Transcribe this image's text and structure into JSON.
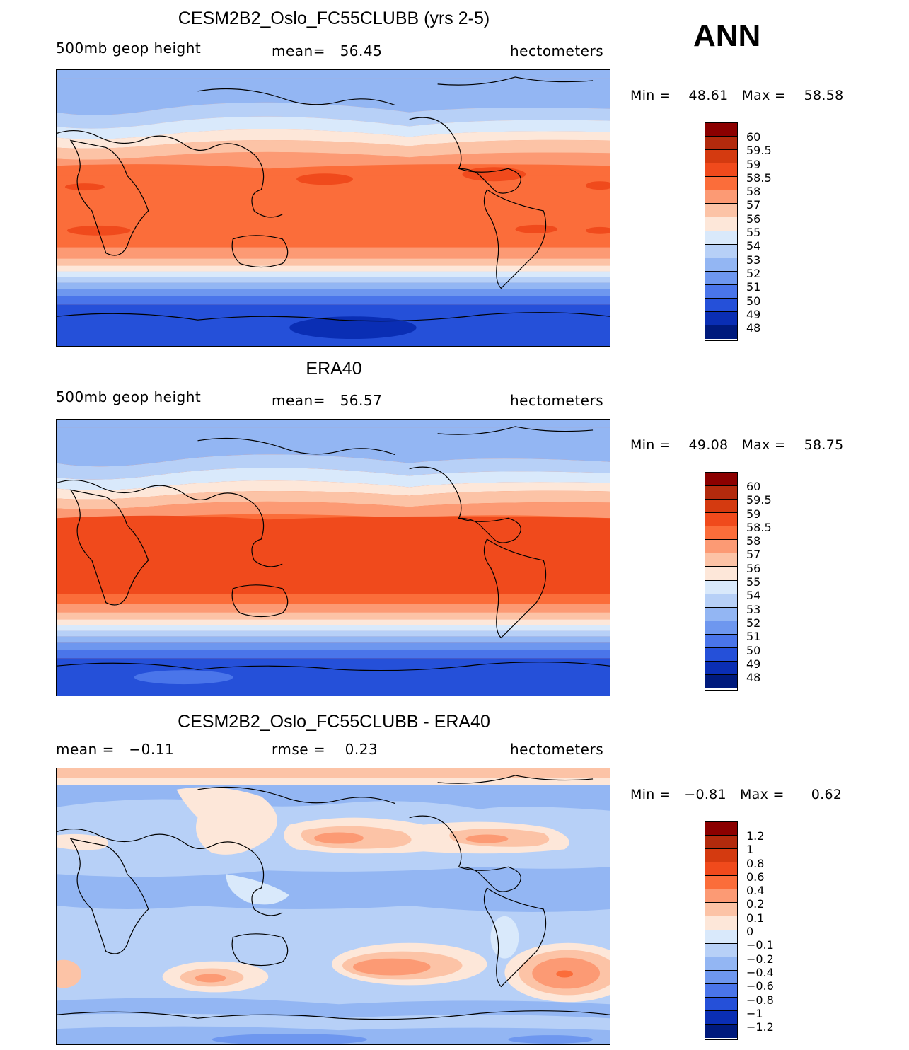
{
  "season": "ANN",
  "panels": [
    {
      "title": "CESM2B2_Oslo_FC55CLUBB (yrs 2-5)",
      "left": "500mb  geop  height",
      "center_label": "mean=",
      "center_value": "56.45",
      "right": "hectometers",
      "min_label": "Min  =",
      "min_value": "48.61",
      "max_label": "Max  =",
      "max_value": "58.58"
    },
    {
      "title": "ERA40",
      "left": "500mb  geop  height",
      "center_label": "mean=",
      "center_value": "56.57",
      "right": "hectometers",
      "min_label": "Min  =",
      "min_value": "49.08",
      "max_label": "Max  =",
      "max_value": "58.75"
    },
    {
      "title": "CESM2B2_Oslo_FC55CLUBB - ERA40",
      "left_label": "mean  =",
      "left_value": "−0.11",
      "center_label": "rmse  =",
      "center_value": "0.23",
      "right": "hectometers",
      "min_label": "Min  =",
      "min_value": "−0.81",
      "max_label": "Max  =",
      "max_value": "0.62"
    }
  ],
  "chart_data": [
    {
      "type": "heatmap",
      "title": "CESM2B2_Oslo_FC55CLUBB (yrs 2-5)",
      "variable": "500mb geop height",
      "units": "hectometers",
      "mean": 56.45,
      "min": 48.61,
      "max": 58.58,
      "colorbar_levels": [
        "60",
        "59.5",
        "59",
        "58.5",
        "58",
        "57",
        "56",
        "55",
        "54",
        "53",
        "52",
        "51",
        "50",
        "49",
        "48"
      ],
      "colorbar_colors": [
        "#8b0000",
        "#b22a0d",
        "#d43a10",
        "#f04a1c",
        "#fb6d3a",
        "#fc9a74",
        "#fcc3a6",
        "#fde7d9",
        "#d9e9fb",
        "#b7d0f7",
        "#93b6f3",
        "#6e97ef",
        "#4a75ea",
        "#2550d9",
        "#0a2eb4",
        "#001a7c"
      ]
    },
    {
      "type": "heatmap",
      "title": "ERA40",
      "variable": "500mb geop height",
      "units": "hectometers",
      "mean": 56.57,
      "min": 49.08,
      "max": 58.75,
      "colorbar_levels": [
        "60",
        "59.5",
        "59",
        "58.5",
        "58",
        "57",
        "56",
        "55",
        "54",
        "53",
        "52",
        "51",
        "50",
        "49",
        "48"
      ],
      "colorbar_colors": [
        "#8b0000",
        "#b22a0d",
        "#d43a10",
        "#f04a1c",
        "#fb6d3a",
        "#fc9a74",
        "#fcc3a6",
        "#fde7d9",
        "#d9e9fb",
        "#b7d0f7",
        "#93b6f3",
        "#6e97ef",
        "#4a75ea",
        "#2550d9",
        "#0a2eb4",
        "#001a7c"
      ]
    },
    {
      "type": "heatmap",
      "title": "CESM2B2_Oslo_FC55CLUBB - ERA40",
      "units": "hectometers",
      "mean": -0.11,
      "rmse": 0.23,
      "min": -0.81,
      "max": 0.62,
      "colorbar_levels": [
        "1.2",
        "1",
        "0.8",
        "0.6",
        "0.4",
        "0.2",
        "0.1",
        "0",
        "−0.1",
        "−0.2",
        "−0.4",
        "−0.6",
        "−0.8",
        "−1",
        "−1.2"
      ],
      "colorbar_colors": [
        "#8b0000",
        "#b22a0d",
        "#d43a10",
        "#f04a1c",
        "#fb6d3a",
        "#fc9a74",
        "#fcc3a6",
        "#fde7d9",
        "#d9e9fb",
        "#b7d0f7",
        "#93b6f3",
        "#6e97ef",
        "#4a75ea",
        "#2550d9",
        "#0a2eb4",
        "#001a7c"
      ]
    }
  ]
}
